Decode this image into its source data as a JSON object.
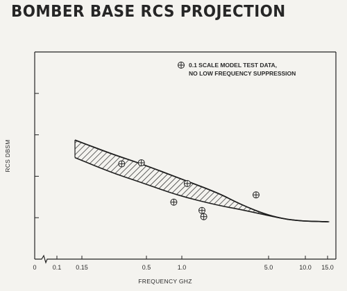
{
  "title": "BOMBER BASE RCS PROJECTION",
  "chart_data": {
    "type": "line",
    "title": "BOMBER BASE RCS PROJECTION",
    "xlabel": "FREQUENCY GHZ",
    "ylabel": "RCS DBSM",
    "x_scale": "log",
    "x_ticks": [
      "0",
      "0.1",
      "0.15",
      "0.5",
      "1.0",
      "5.0",
      "10.0",
      "15.0"
    ],
    "x_tick_values": [
      0,
      0.1,
      0.15,
      0.5,
      1.0,
      5.0,
      10.0,
      15.0
    ],
    "xlim": [
      0.15,
      15.0
    ],
    "y_scale": "unlabeled",
    "y_ticks_count": 5,
    "ylim": [
      0,
      10
    ],
    "legend": {
      "position": "top-right",
      "marker": "⊕",
      "lines": [
        "0.1 SCALE MODEL TEST DATA,",
        "NO LOW FREQUENCY SUPPRESSION"
      ]
    },
    "series": [
      {
        "role": "upper-bound",
        "x": [
          0.15,
          0.3,
          0.5,
          1.0,
          2.0,
          3.0,
          5.0,
          8.0,
          15.0
        ],
        "y": [
          5.75,
          5.05,
          4.6,
          3.9,
          3.2,
          2.65,
          2.1,
          1.85,
          1.8
        ]
      },
      {
        "role": "lower-bound",
        "x": [
          0.15,
          0.3,
          0.5,
          1.0,
          2.0,
          3.0,
          5.0,
          8.0,
          15.0
        ],
        "y": [
          4.9,
          4.15,
          3.7,
          3.05,
          2.6,
          2.4,
          2.1,
          1.85,
          1.8
        ]
      },
      {
        "role": "test-data",
        "type": "scatter",
        "marker": "⊕",
        "x": [
          0.35,
          0.5,
          0.9,
          1.15,
          1.5,
          1.55,
          4.0
        ],
        "y": [
          4.6,
          4.65,
          2.75,
          3.65,
          2.35,
          2.05,
          3.1
        ]
      }
    ]
  }
}
